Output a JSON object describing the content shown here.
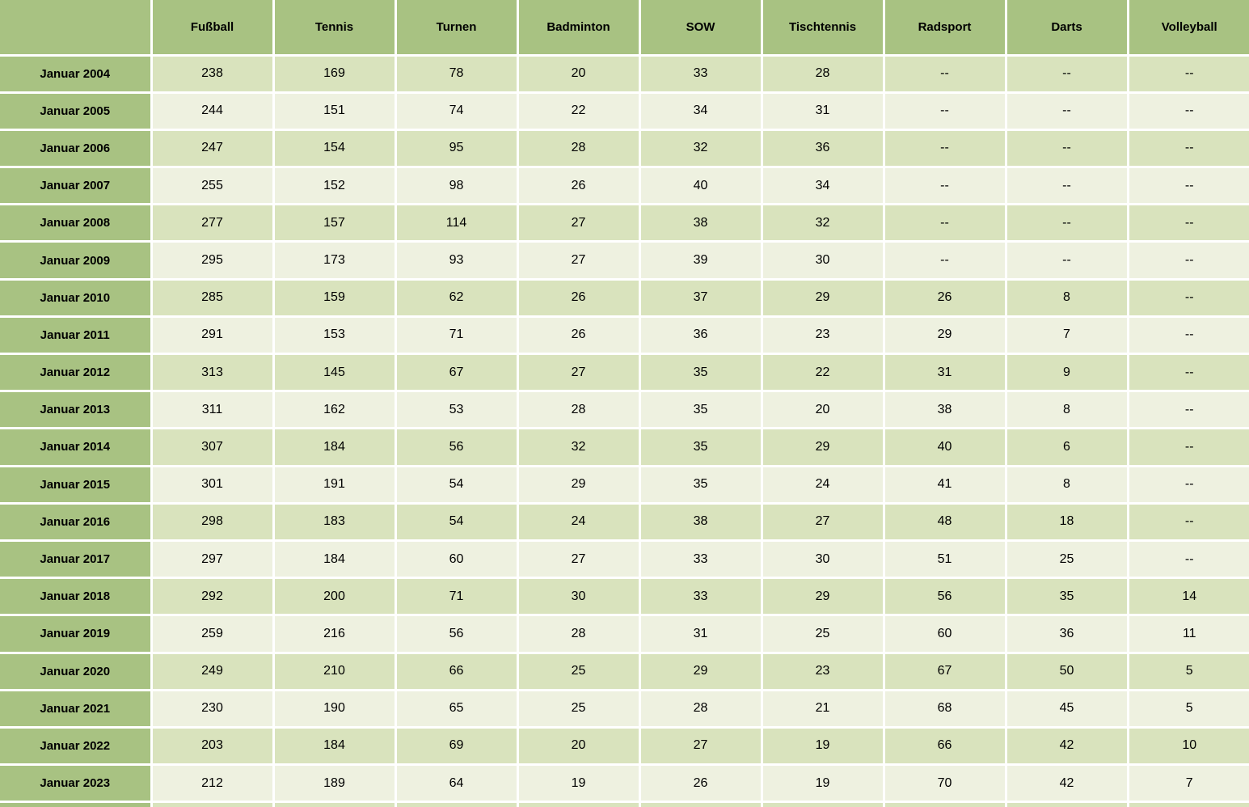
{
  "columns": [
    "",
    "Fußball",
    "Tennis",
    "Turnen",
    "Badminton",
    "SOW",
    "Tischtennis",
    "Radsport",
    "Darts",
    "Volleyball"
  ],
  "rows": [
    {
      "label": "Januar 2004",
      "values": [
        "238",
        "169",
        "78",
        "20",
        "33",
        "28",
        "--",
        "--",
        "--"
      ]
    },
    {
      "label": "Januar 2005",
      "values": [
        "244",
        "151",
        "74",
        "22",
        "34",
        "31",
        "--",
        "--",
        "--"
      ]
    },
    {
      "label": "Januar 2006",
      "values": [
        "247",
        "154",
        "95",
        "28",
        "32",
        "36",
        "--",
        "--",
        "--"
      ]
    },
    {
      "label": "Januar 2007",
      "values": [
        "255",
        "152",
        "98",
        "26",
        "40",
        "34",
        "--",
        "--",
        "--"
      ]
    },
    {
      "label": "Januar 2008",
      "values": [
        "277",
        "157",
        "114",
        "27",
        "38",
        "32",
        "--",
        "--",
        "--"
      ]
    },
    {
      "label": "Januar 2009",
      "values": [
        "295",
        "173",
        "93",
        "27",
        "39",
        "30",
        "--",
        "--",
        "--"
      ]
    },
    {
      "label": "Januar 2010",
      "values": [
        "285",
        "159",
        "62",
        "26",
        "37",
        "29",
        "26",
        "8",
        "--"
      ]
    },
    {
      "label": "Januar 2011",
      "values": [
        "291",
        "153",
        "71",
        "26",
        "36",
        "23",
        "29",
        "7",
        "--"
      ]
    },
    {
      "label": "Januar 2012",
      "values": [
        "313",
        "145",
        "67",
        "27",
        "35",
        "22",
        "31",
        "9",
        "--"
      ]
    },
    {
      "label": "Januar 2013",
      "values": [
        "311",
        "162",
        "53",
        "28",
        "35",
        "20",
        "38",
        "8",
        "--"
      ]
    },
    {
      "label": "Januar 2014",
      "values": [
        "307",
        "184",
        "56",
        "32",
        "35",
        "29",
        "40",
        "6",
        "--"
      ]
    },
    {
      "label": "Januar 2015",
      "values": [
        "301",
        "191",
        "54",
        "29",
        "35",
        "24",
        "41",
        "8",
        "--"
      ]
    },
    {
      "label": "Januar 2016",
      "values": [
        "298",
        "183",
        "54",
        "24",
        "38",
        "27",
        "48",
        "18",
        "--"
      ]
    },
    {
      "label": "Januar 2017",
      "values": [
        "297",
        "184",
        "60",
        "27",
        "33",
        "30",
        "51",
        "25",
        "--"
      ]
    },
    {
      "label": "Januar 2018",
      "values": [
        "292",
        "200",
        "71",
        "30",
        "33",
        "29",
        "56",
        "35",
        "14"
      ]
    },
    {
      "label": "Januar 2019",
      "values": [
        "259",
        "216",
        "56",
        "28",
        "31",
        "25",
        "60",
        "36",
        "11"
      ]
    },
    {
      "label": "Januar 2020",
      "values": [
        "249",
        "210",
        "66",
        "25",
        "29",
        "23",
        "67",
        "50",
        "5"
      ]
    },
    {
      "label": "Januar 2021",
      "values": [
        "230",
        "190",
        "65",
        "25",
        "28",
        "21",
        "68",
        "45",
        "5"
      ]
    },
    {
      "label": "Januar 2022",
      "values": [
        "203",
        "184",
        "69",
        "20",
        "27",
        "19",
        "66",
        "42",
        "10"
      ]
    },
    {
      "label": "Januar 2023",
      "values": [
        "212",
        "189",
        "64",
        "19",
        "26",
        "19",
        "70",
        "42",
        "7"
      ]
    }
  ],
  "partial_next_row": {
    "label": "",
    "values": [
      "",
      "",
      "",
      "",
      "",
      "",
      "",
      "",
      ""
    ]
  },
  "layout": {
    "label_col_width": 187,
    "data_col_width": 151
  },
  "colors": {
    "header_bg": "#a8c282",
    "row_alt_green": "#d9e3bd",
    "row_alt_white": "#eef1e0",
    "grid": "#ffffff",
    "text": "#000000"
  },
  "chart_data": {
    "type": "table",
    "title": "",
    "categories": [
      "Januar 2004",
      "Januar 2005",
      "Januar 2006",
      "Januar 2007",
      "Januar 2008",
      "Januar 2009",
      "Januar 2010",
      "Januar 2011",
      "Januar 2012",
      "Januar 2013",
      "Januar 2014",
      "Januar 2015",
      "Januar 2016",
      "Januar 2017",
      "Januar 2018",
      "Januar 2019",
      "Januar 2020",
      "Januar 2021",
      "Januar 2022",
      "Januar 2023"
    ],
    "missing_value_marker": "--",
    "series": [
      {
        "name": "Fußball",
        "values": [
          238,
          244,
          247,
          255,
          277,
          295,
          285,
          291,
          313,
          311,
          307,
          301,
          298,
          297,
          292,
          259,
          249,
          230,
          203,
          212
        ]
      },
      {
        "name": "Tennis",
        "values": [
          169,
          151,
          154,
          152,
          157,
          173,
          159,
          153,
          145,
          162,
          184,
          191,
          183,
          184,
          200,
          216,
          210,
          190,
          184,
          189
        ]
      },
      {
        "name": "Turnen",
        "values": [
          78,
          74,
          95,
          98,
          114,
          93,
          62,
          71,
          67,
          53,
          56,
          54,
          54,
          60,
          71,
          56,
          66,
          65,
          69,
          64
        ]
      },
      {
        "name": "Badminton",
        "values": [
          20,
          22,
          28,
          26,
          27,
          27,
          26,
          26,
          27,
          28,
          32,
          29,
          24,
          27,
          30,
          28,
          25,
          25,
          20,
          19
        ]
      },
      {
        "name": "SOW",
        "values": [
          33,
          34,
          32,
          40,
          38,
          39,
          37,
          36,
          35,
          35,
          35,
          35,
          38,
          33,
          33,
          31,
          29,
          28,
          27,
          26
        ]
      },
      {
        "name": "Tischtennis",
        "values": [
          28,
          31,
          36,
          34,
          32,
          30,
          29,
          23,
          22,
          20,
          29,
          24,
          27,
          30,
          29,
          25,
          23,
          21,
          19,
          19
        ]
      },
      {
        "name": "Radsport",
        "values": [
          null,
          null,
          null,
          null,
          null,
          null,
          26,
          29,
          31,
          38,
          40,
          41,
          48,
          51,
          56,
          60,
          67,
          68,
          66,
          70
        ]
      },
      {
        "name": "Darts",
        "values": [
          null,
          null,
          null,
          null,
          null,
          null,
          8,
          7,
          9,
          8,
          6,
          8,
          18,
          25,
          35,
          36,
          50,
          45,
          42,
          42
        ]
      },
      {
        "name": "Volleyball",
        "values": [
          null,
          null,
          null,
          null,
          null,
          null,
          null,
          null,
          null,
          null,
          null,
          null,
          null,
          null,
          14,
          11,
          5,
          5,
          10,
          7
        ]
      }
    ]
  }
}
